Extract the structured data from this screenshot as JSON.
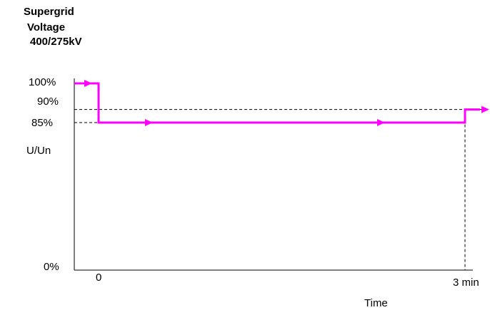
{
  "title": {
    "line1": "Supergrid",
    "line2": "Voltage",
    "line3": "400/275kV"
  },
  "axes": {
    "y_ticks": [
      "100%",
      "90%",
      "85%",
      "0%"
    ],
    "y_label": "U/Un",
    "x_ticks": [
      "0",
      "3 min"
    ],
    "x_label": "Time"
  },
  "chart_data": {
    "type": "line",
    "x_unit": "min",
    "y_unit": "% of Un",
    "series": [
      {
        "x": [
          0,
          0,
          3,
          3
        ],
        "y": [
          100,
          85,
          85,
          90
        ],
        "color": "#ff00ff"
      }
    ],
    "reference_levels": [
      90,
      85
    ],
    "xlim": [
      0,
      3
    ],
    "ylim": [
      0,
      100
    ]
  },
  "colors": {
    "profile": "#ff00ff",
    "axis": "#000000",
    "reference": "#000000"
  }
}
